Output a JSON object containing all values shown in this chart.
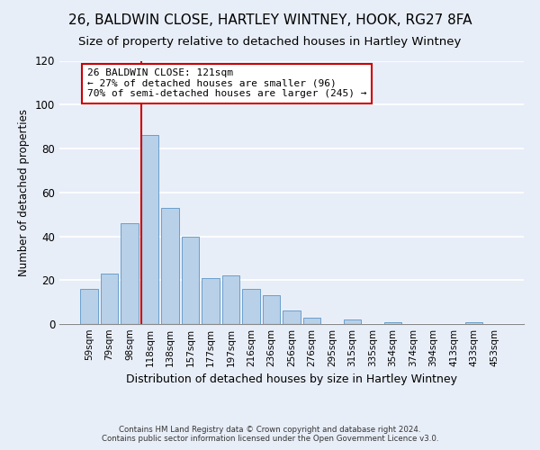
{
  "title": "26, BALDWIN CLOSE, HARTLEY WINTNEY, HOOK, RG27 8FA",
  "subtitle": "Size of property relative to detached houses in Hartley Wintney",
  "xlabel": "Distribution of detached houses by size in Hartley Wintney",
  "ylabel": "Number of detached properties",
  "footer_line1": "Contains HM Land Registry data © Crown copyright and database right 2024.",
  "footer_line2": "Contains public sector information licensed under the Open Government Licence v3.0.",
  "bar_labels": [
    "59sqm",
    "79sqm",
    "98sqm",
    "118sqm",
    "138sqm",
    "157sqm",
    "177sqm",
    "197sqm",
    "216sqm",
    "236sqm",
    "256sqm",
    "276sqm",
    "295sqm",
    "315sqm",
    "335sqm",
    "354sqm",
    "374sqm",
    "394sqm",
    "413sqm",
    "433sqm",
    "453sqm"
  ],
  "bar_values": [
    16,
    23,
    46,
    86,
    53,
    40,
    21,
    22,
    16,
    13,
    6,
    3,
    0,
    2,
    0,
    1,
    0,
    0,
    0,
    1,
    0
  ],
  "bar_color": "#b8d0e8",
  "bar_edge_color": "#6aa0cc",
  "vline_x_index": 3,
  "vline_color": "#cc0000",
  "annotation_title": "26 BALDWIN CLOSE: 121sqm",
  "annotation_line2": "← 27% of detached houses are smaller (96)",
  "annotation_line3": "70% of semi-detached houses are larger (245) →",
  "annotation_box_color": "#ffffff",
  "annotation_box_edge": "#cc0000",
  "ylim": [
    0,
    120
  ],
  "yticks": [
    0,
    20,
    40,
    60,
    80,
    100,
    120
  ],
  "background_color": "#e8eef8",
  "grid_color": "#ffffff",
  "title_fontsize": 11,
  "subtitle_fontsize": 9.5
}
